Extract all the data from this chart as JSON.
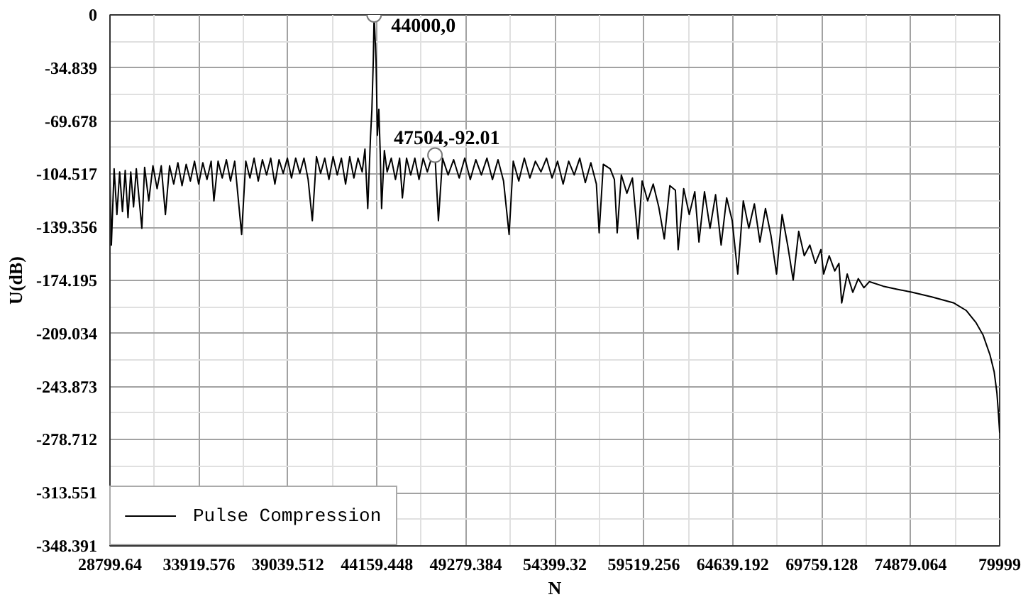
{
  "chart_data": {
    "type": "line",
    "xlabel": "N",
    "ylabel": "U(dB)",
    "x": [
      28800,
      28880,
      29039,
      29199,
      29358,
      29518,
      29677,
      29837,
      29996,
      30156,
      30315,
      30634,
      30794,
      31033,
      31272,
      31512,
      31751,
      31990,
      32229,
      32469,
      32708,
      32947,
      33186,
      33426,
      33665,
      33904,
      34143,
      34383,
      34622,
      34781,
      35021,
      35260,
      35499,
      35738,
      35978,
      36376,
      36616,
      36855,
      37094,
      37333,
      37573,
      37812,
      38051,
      38290,
      38530,
      38769,
      39008,
      39247,
      39487,
      39726,
      39965,
      40204,
      40444,
      40683,
      40922,
      41161,
      41401,
      41640,
      41879,
      42118,
      42358,
      42597,
      42836,
      43075,
      43315,
      43474,
      43634,
      43793,
      43873,
      43953,
      44000,
      44112,
      44192,
      44272,
      44351,
      44431,
      44591,
      44750,
      44989,
      45229,
      45468,
      45627,
      45867,
      46106,
      46345,
      46584,
      46824,
      47063,
      47302,
      47504,
      47701,
      47940,
      48259,
      48578,
      48897,
      49216,
      49535,
      49854,
      50173,
      50492,
      50811,
      51130,
      51449,
      51768,
      52007,
      52326,
      52645,
      52964,
      53283,
      53602,
      53921,
      54240,
      54559,
      54878,
      55197,
      55516,
      55835,
      56154,
      56473,
      56792,
      56952,
      57191,
      57590,
      57829,
      57989,
      58228,
      58547,
      58866,
      59185,
      59424,
      59743,
      60062,
      60381,
      60700,
      61019,
      61338,
      61498,
      61817,
      62136,
      62455,
      62694,
      63013,
      63332,
      63651,
      63970,
      64289,
      64608,
      64927,
      65246,
      65565,
      65884,
      66203,
      66522,
      66841,
      67160,
      67479,
      67798,
      68117,
      68436,
      68755,
      69074,
      69393,
      69712,
      69871,
      70190,
      70509,
      70749,
      70908,
      71227,
      71546,
      71865,
      72184,
      72503,
      73301,
      74098,
      74975,
      76092,
      77368,
      78085,
      78644,
      79043,
      79441,
      79681,
      79841,
      79920,
      79999
    ],
    "series": [
      {
        "name": "Pulse Compression",
        "color": "#000000",
        "values": [
          -105,
          -151,
          -101,
          -131,
          -103,
          -129,
          -102,
          -133,
          -103,
          -126,
          -101,
          -140,
          -100,
          -122,
          -99,
          -114,
          -99,
          -131,
          -99,
          -111,
          -97,
          -112,
          -98,
          -109,
          -96,
          -111,
          -97,
          -108,
          -96,
          -122,
          -96,
          -107,
          -95,
          -109,
          -96,
          -144,
          -96,
          -107,
          -94,
          -109,
          -95,
          -105,
          -94,
          -111,
          -95,
          -104,
          -94,
          -107,
          -94,
          -104,
          -94,
          -108,
          -135,
          -93,
          -104,
          -94,
          -108,
          -93,
          -105,
          -94,
          -111,
          -93,
          -107,
          -94,
          -103,
          -88,
          -127,
          -80,
          -62,
          -30,
          0,
          -30,
          -79,
          -62,
          -90,
          -127,
          -89,
          -103,
          -94,
          -108,
          -94,
          -120,
          -94,
          -105,
          -94,
          -108,
          -94,
          -103,
          -94,
          -92.01,
          -135,
          -94,
          -105,
          -95,
          -107,
          -94,
          -108,
          -95,
          -105,
          -94,
          -108,
          -95,
          -109,
          -144,
          -96,
          -109,
          -94,
          -107,
          -96,
          -103,
          -94,
          -107,
          -96,
          -111,
          -96,
          -105,
          -94,
          -110,
          -97,
          -111,
          -143,
          -98,
          -101,
          -108,
          -143,
          -105,
          -117,
          -107,
          -147,
          -109,
          -122,
          -111,
          -126,
          -147,
          -112,
          -115,
          -154,
          -114,
          -131,
          -116,
          -149,
          -116,
          -140,
          -118,
          -151,
          -120,
          -135,
          -170,
          -122,
          -140,
          -124,
          -149,
          -127,
          -145,
          -170,
          -131,
          -151,
          -174,
          -142,
          -158,
          -151,
          -163,
          -154,
          -170,
          -158,
          -168,
          -163,
          -189,
          -170,
          -182,
          -173,
          -179,
          -175,
          -178,
          -180,
          -182,
          -185,
          -189,
          -194,
          -202,
          -210,
          -223,
          -234,
          -248,
          -260,
          -274
        ]
      }
    ],
    "xlim": [
      28799.64,
      79999
    ],
    "ylim": [
      -348.391,
      0
    ],
    "xticks": [
      28799.64,
      33919.576,
      39039.512,
      44159.448,
      49279.384,
      54399.32,
      59519.256,
      64639.192,
      69759.128,
      74879.064,
      79999
    ],
    "yticks": [
      0,
      -34.839,
      -69.678,
      -104.517,
      -139.356,
      -174.195,
      -209.034,
      -243.873,
      -278.712,
      -313.551,
      -348.391
    ],
    "grid": true,
    "legend": "bottom left",
    "annotations": [
      {
        "text": "44000,0",
        "x": 44000,
        "y": 0
      },
      {
        "text": "47504,-92.01",
        "x": 47504,
        "y": -92.01
      }
    ]
  }
}
